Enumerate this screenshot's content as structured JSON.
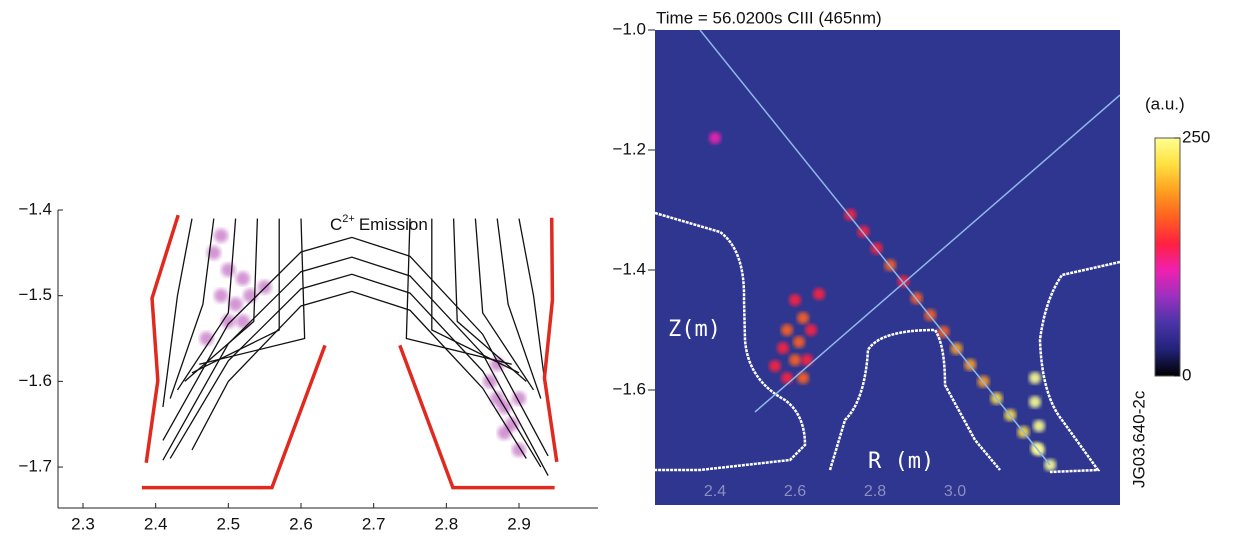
{
  "figure_id": "JG03.640-2c",
  "chart_data": [
    {
      "type": "line",
      "annotation": [
        "C",
        "2+",
        "Emission"
      ],
      "xlim": [
        2.2656,
        3.0087
      ],
      "ylim": [
        -1.7478,
        -1.4
      ],
      "xticks": [
        2.3,
        2.4,
        2.5,
        2.6,
        2.7,
        2.8,
        2.9
      ],
      "yticks": [
        {
          "value": -1.4,
          "label": "−1.4"
        },
        {
          "value": -1.5,
          "label": "−1.5"
        },
        {
          "value": -1.6,
          "label": "−1.6"
        },
        {
          "value": -1.7,
          "label": "−1.7"
        }
      ],
      "series": [
        {
          "type": "scatter",
          "color": "#b040b0",
          "x": [
            2.48,
            2.5,
            2.52,
            2.49,
            2.51,
            2.53,
            2.55,
            2.5,
            2.47,
            2.52,
            2.49,
            2.86,
            2.87,
            2.88,
            2.89,
            2.88,
            2.9,
            2.87,
            2.9
          ],
          "y": [
            -1.45,
            -1.47,
            -1.48,
            -1.5,
            -1.51,
            -1.5,
            -1.49,
            -1.53,
            -1.55,
            -1.53,
            -1.43,
            -1.6,
            -1.62,
            -1.63,
            -1.65,
            -1.66,
            -1.68,
            -1.58,
            -1.62
          ]
        },
        {
          "type": "line",
          "color": "#111111",
          "x": [
            2.41,
            2.5,
            2.6,
            2.67,
            2.75,
            2.85,
            2.94
          ],
          "y": [
            -1.669,
            -1.533,
            -1.449,
            -1.432,
            -1.454,
            -1.545,
            -1.687
          ]
        },
        {
          "type": "line",
          "color": "#111111",
          "x": [
            2.41,
            2.5,
            2.6,
            2.67,
            2.75,
            2.85,
            2.94
          ],
          "y": [
            -1.692,
            -1.556,
            -1.472,
            -1.455,
            -1.477,
            -1.568,
            -1.71
          ]
        },
        {
          "type": "line",
          "color": "#111111",
          "x": [
            2.42,
            2.5,
            2.6,
            2.67,
            2.75,
            2.85,
            2.93
          ],
          "y": [
            -1.69,
            -1.576,
            -1.492,
            -1.475,
            -1.497,
            -1.588,
            -1.7
          ]
        },
        {
          "type": "line",
          "color": "#111111",
          "x": [
            2.45,
            2.5,
            2.6,
            2.67,
            2.75,
            2.85,
            2.91
          ],
          "y": [
            -1.68,
            -1.6,
            -1.512,
            -1.495,
            -1.517,
            -1.608,
            -1.69
          ]
        },
        {
          "type": "line",
          "color": "#111111",
          "x": [
            2.45,
            2.43,
            2.41
          ],
          "y": [
            -1.41,
            -1.5,
            -1.63
          ]
        },
        {
          "type": "line",
          "color": "#111111",
          "x": [
            2.48,
            2.465,
            2.42
          ],
          "y": [
            -1.41,
            -1.51,
            -1.62
          ]
        },
        {
          "type": "line",
          "color": "#111111",
          "x": [
            2.51,
            2.5,
            2.43
          ],
          "y": [
            -1.41,
            -1.52,
            -1.61
          ]
        },
        {
          "type": "line",
          "color": "#111111",
          "x": [
            2.54,
            2.535,
            2.44
          ],
          "y": [
            -1.41,
            -1.53,
            -1.6
          ]
        },
        {
          "type": "line",
          "color": "#111111",
          "x": [
            2.57,
            2.57,
            2.45
          ],
          "y": [
            -1.41,
            -1.54,
            -1.59
          ]
        },
        {
          "type": "line",
          "color": "#111111",
          "x": [
            2.6,
            2.605,
            2.46
          ],
          "y": [
            -1.41,
            -1.55,
            -1.58
          ]
        },
        {
          "type": "line",
          "color": "#111111",
          "x": [
            2.9,
            2.92,
            2.94
          ],
          "y": [
            -1.41,
            -1.5,
            -1.63
          ]
        },
        {
          "type": "line",
          "color": "#111111",
          "x": [
            2.87,
            2.885,
            2.93
          ],
          "y": [
            -1.41,
            -1.51,
            -1.62
          ]
        },
        {
          "type": "line",
          "color": "#111111",
          "x": [
            2.84,
            2.85,
            2.92
          ],
          "y": [
            -1.41,
            -1.52,
            -1.61
          ]
        },
        {
          "type": "line",
          "color": "#111111",
          "x": [
            2.81,
            2.815,
            2.91
          ],
          "y": [
            -1.41,
            -1.53,
            -1.6
          ]
        },
        {
          "type": "line",
          "color": "#111111",
          "x": [
            2.78,
            2.78,
            2.9
          ],
          "y": [
            -1.41,
            -1.54,
            -1.59
          ]
        },
        {
          "type": "line",
          "color": "#111111",
          "x": [
            2.75,
            2.745,
            2.89
          ],
          "y": [
            -1.41,
            -1.55,
            -1.58
          ]
        },
        {
          "type": "line",
          "color": "#e02a20",
          "x": [
            2.431,
            2.395,
            2.403,
            2.387
          ],
          "y": [
            -1.406,
            -1.503,
            -1.599,
            -1.695
          ]
        },
        {
          "type": "line",
          "color": "#e02a20",
          "x": [
            2.381,
            2.56,
            2.633
          ],
          "y": [
            -1.724,
            -1.724,
            -1.558
          ]
        },
        {
          "type": "line",
          "color": "#e02a20",
          "x": [
            2.736,
            2.809,
            2.949
          ],
          "y": [
            -1.558,
            -1.724,
            -1.724
          ]
        },
        {
          "type": "line",
          "color": "#e02a20",
          "x": [
            2.945,
            2.946,
            2.935,
            2.952
          ],
          "y": [
            -1.409,
            -1.505,
            -1.596,
            -1.694
          ]
        }
      ]
    },
    {
      "type": "scatter",
      "title": "Time = 56.0200s CIII (465nm)",
      "xlabel": "R (m)",
      "ylabel": "Z(m)",
      "xlim": [
        2.25,
        3.4125
      ],
      "ylim": [
        -1.7917,
        -1.0
      ],
      "xticks": [
        2.4,
        2.6,
        2.8,
        {
          "value": 3.0,
          "label": "3.0"
        }
      ],
      "yticks": [
        {
          "value": -1.0,
          "label": "−1.0"
        },
        {
          "value": -1.2,
          "label": "−1.2"
        },
        {
          "value": -1.4,
          "label": "−1.4"
        },
        {
          "value": -1.6,
          "label": "−1.6"
        }
      ],
      "background": "#2e3690",
      "colormap": [
        "#000000",
        "#22227a",
        "#4a34a8",
        "#9a30c0",
        "#f020b0",
        "#ff2040",
        "#ff6020",
        "#ffa020",
        "#ffe040",
        "#ffff90"
      ],
      "clim": [
        0,
        250
      ],
      "colorbar_ticks": [
        0,
        250
      ],
      "colorbar_label": "(a.u.)",
      "x": [
        2.738,
        2.771,
        2.804,
        2.838,
        2.871,
        2.904,
        2.938,
        2.971,
        3.004,
        3.038,
        3.071,
        3.104,
        3.138,
        3.171,
        3.204,
        3.238,
        2.6,
        2.62,
        2.58,
        2.61,
        2.64,
        2.57,
        2.6,
        2.63,
        2.58,
        2.62,
        2.55,
        2.66,
        3.2,
        3.2,
        3.21,
        3.21,
        2.4
      ],
      "y": [
        -1.308,
        -1.336,
        -1.364,
        -1.392,
        -1.419,
        -1.447,
        -1.475,
        -1.503,
        -1.531,
        -1.558,
        -1.586,
        -1.614,
        -1.642,
        -1.67,
        -1.697,
        -1.725,
        -1.45,
        -1.48,
        -1.5,
        -1.52,
        -1.5,
        -1.53,
        -1.55,
        -1.55,
        -1.58,
        -1.58,
        -1.56,
        -1.44,
        -1.58,
        -1.62,
        -1.66,
        -1.7,
        -1.18
      ],
      "values": [
        130,
        140,
        150,
        160,
        150,
        170,
        160,
        180,
        190,
        200,
        190,
        210,
        220,
        230,
        240,
        250,
        150,
        160,
        155,
        165,
        150,
        140,
        160,
        150,
        145,
        155,
        130,
        140,
        240,
        245,
        250,
        240,
        120
      ]
    }
  ]
}
